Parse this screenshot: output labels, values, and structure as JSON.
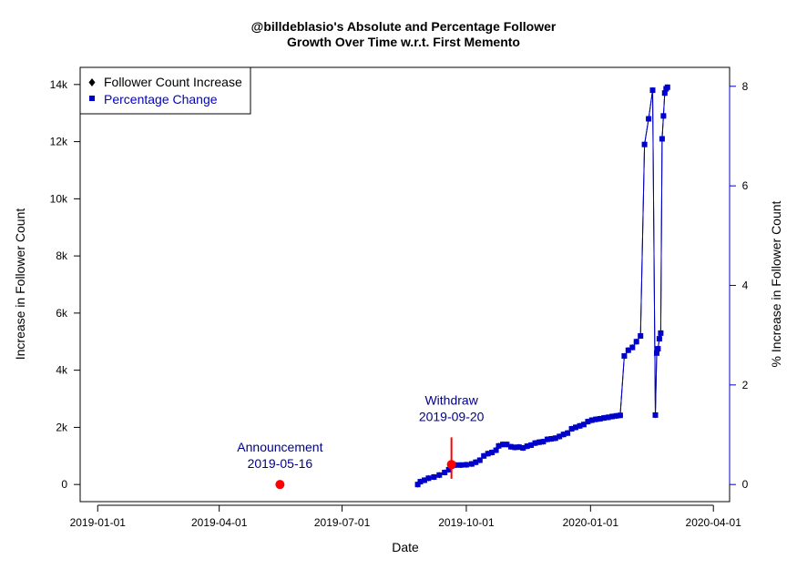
{
  "chart_data": {
    "type": "line",
    "title": [
      "@billdeblasio's Absolute and Percentage Follower",
      "Growth Over Time w.r.t. First Memento"
    ],
    "xlabel": "Date",
    "ylabel_left": "Increase in Follower Count",
    "ylabel_right": "% Increase in Follower Count",
    "x_range": [
      "2018-12-19",
      "2020-04-13"
    ],
    "x_ticks": [
      "2019-01-01",
      "2019-04-01",
      "2019-07-01",
      "2019-10-01",
      "2020-01-01",
      "2020-04-01"
    ],
    "y_left_range": [
      -600,
      14600
    ],
    "y_left_ticks": [
      0,
      2000,
      4000,
      6000,
      8000,
      10000,
      12000,
      14000
    ],
    "y_left_tick_labels": [
      "0",
      "2k",
      "4k",
      "6k",
      "8k",
      "10k",
      "12k",
      "14k"
    ],
    "y_right_ticks": [
      0,
      2,
      4,
      6,
      8
    ],
    "y_right_tick_labels": [
      "0",
      "2",
      "4",
      "6",
      "8"
    ],
    "percent_per_count": 0.000574,
    "grid": false,
    "legend_position": "top-left",
    "series": [
      {
        "name": "Follower Count Increase",
        "axis": "left",
        "color": "#000000",
        "marker": "diamond",
        "x": [
          "2019-08-26",
          "2019-08-28",
          "2019-08-31",
          "2019-09-03",
          "2019-09-07",
          "2019-09-11",
          "2019-09-15",
          "2019-09-18",
          "2019-09-20",
          "2019-09-23",
          "2019-09-27",
          "2019-10-01",
          "2019-10-05",
          "2019-10-08",
          "2019-10-11",
          "2019-10-14",
          "2019-10-17",
          "2019-10-20",
          "2019-10-23",
          "2019-10-25",
          "2019-10-28",
          "2019-10-31",
          "2019-11-03",
          "2019-11-06",
          "2019-11-09",
          "2019-11-12",
          "2019-11-15",
          "2019-11-18",
          "2019-11-21",
          "2019-11-24",
          "2019-11-27",
          "2019-11-30",
          "2019-12-03",
          "2019-12-06",
          "2019-12-09",
          "2019-12-12",
          "2019-12-15",
          "2019-12-18",
          "2019-12-21",
          "2019-12-24",
          "2019-12-27",
          "2019-12-30",
          "2020-01-02",
          "2020-01-05",
          "2020-01-08",
          "2020-01-11",
          "2020-01-14",
          "2020-01-17",
          "2020-01-20",
          "2020-01-23",
          "2020-01-26",
          "2020-01-29",
          "2020-02-01",
          "2020-02-04",
          "2020-02-07",
          "2020-02-10",
          "2020-02-13",
          "2020-02-16",
          "2020-02-18",
          "2020-02-19",
          "2020-02-20",
          "2020-02-21",
          "2020-02-22",
          "2020-02-23",
          "2020-02-24",
          "2020-02-25",
          "2020-02-26",
          "2020-02-27"
        ],
        "values": [
          0,
          100,
          150,
          220,
          260,
          330,
          420,
          520,
          640,
          680,
          680,
          690,
          720,
          780,
          850,
          1000,
          1080,
          1120,
          1200,
          1350,
          1400,
          1400,
          1320,
          1300,
          1310,
          1280,
          1340,
          1380,
          1450,
          1480,
          1500,
          1580,
          1600,
          1620,
          1680,
          1750,
          1800,
          1950,
          2000,
          2050,
          2100,
          2200,
          2250,
          2280,
          2300,
          2330,
          2350,
          2380,
          2400,
          2420,
          4500,
          4700,
          4800,
          5000,
          5200,
          11900,
          12800,
          13800,
          2430,
          4600,
          4750,
          5100,
          5300,
          12100,
          12900,
          13700,
          13850,
          13900
        ]
      },
      {
        "name": "Percentage Change",
        "axis": "right",
        "color": "#0000cd",
        "marker": "square",
        "x": [
          "2019-08-26",
          "2019-08-28",
          "2019-08-31",
          "2019-09-03",
          "2019-09-07",
          "2019-09-11",
          "2019-09-15",
          "2019-09-18",
          "2019-09-20",
          "2019-09-23",
          "2019-09-27",
          "2019-10-01",
          "2019-10-05",
          "2019-10-08",
          "2019-10-11",
          "2019-10-14",
          "2019-10-17",
          "2019-10-20",
          "2019-10-23",
          "2019-10-25",
          "2019-10-28",
          "2019-10-31",
          "2019-11-03",
          "2019-11-06",
          "2019-11-09",
          "2019-11-12",
          "2019-11-15",
          "2019-11-18",
          "2019-11-21",
          "2019-11-24",
          "2019-11-27",
          "2019-11-30",
          "2019-12-03",
          "2019-12-06",
          "2019-12-09",
          "2019-12-12",
          "2019-12-15",
          "2019-12-18",
          "2019-12-21",
          "2019-12-24",
          "2019-12-27",
          "2019-12-30",
          "2020-01-02",
          "2020-01-05",
          "2020-01-08",
          "2020-01-11",
          "2020-01-14",
          "2020-01-17",
          "2020-01-20",
          "2020-01-23",
          "2020-01-26",
          "2020-01-29",
          "2020-02-01",
          "2020-02-04",
          "2020-02-07",
          "2020-02-10",
          "2020-02-13",
          "2020-02-16",
          "2020-02-18",
          "2020-02-19",
          "2020-02-20",
          "2020-02-21",
          "2020-02-22",
          "2020-02-23",
          "2020-02-24",
          "2020-02-25",
          "2020-02-26",
          "2020-02-27"
        ],
        "values": [
          0,
          0.057,
          0.086,
          0.126,
          0.149,
          0.189,
          0.241,
          0.298,
          0.367,
          0.39,
          0.39,
          0.396,
          0.413,
          0.448,
          0.488,
          0.574,
          0.62,
          0.643,
          0.689,
          0.775,
          0.804,
          0.804,
          0.758,
          0.746,
          0.752,
          0.735,
          0.769,
          0.792,
          0.832,
          0.85,
          0.861,
          0.907,
          0.918,
          0.93,
          0.965,
          1.005,
          1.033,
          1.119,
          1.148,
          1.177,
          1.205,
          1.263,
          1.292,
          1.309,
          1.32,
          1.337,
          1.349,
          1.366,
          1.378,
          1.389,
          2.583,
          2.698,
          2.755,
          2.87,
          2.985,
          6.831,
          7.347,
          7.921,
          1.395,
          2.64,
          2.727,
          2.927,
          3.042,
          6.945,
          7.405,
          7.864,
          7.95,
          7.981
        ]
      }
    ],
    "events": [
      {
        "label": "Announcement",
        "date_label": "2019-05-16",
        "date": "2019-05-16",
        "value": 0,
        "color": "#ff0000"
      },
      {
        "label": "Withdraw",
        "date_label": "2019-09-20",
        "date": "2019-09-20",
        "value": 700,
        "color": "#ff0000",
        "line_from": 200,
        "line_to": 1650
      }
    ]
  }
}
